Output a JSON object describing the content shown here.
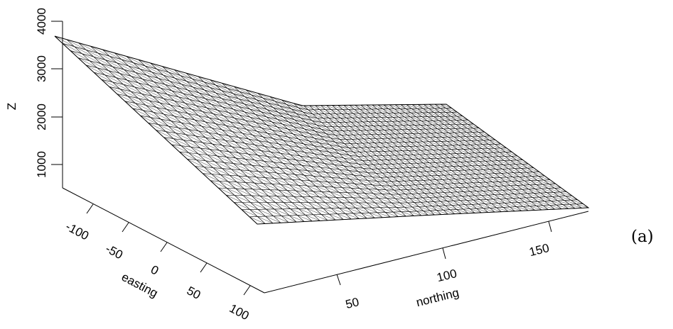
{
  "chart_data": {
    "type": "surface",
    "title": "",
    "panel_label": "(a)",
    "axes": {
      "z": {
        "label": "Z",
        "ticks": [
          1000,
          2000,
          3000,
          4000
        ],
        "range": [
          500,
          4000
        ]
      },
      "easting": {
        "label": "easting",
        "ticks": [
          -100,
          -50,
          0,
          50,
          100
        ],
        "range": [
          -130,
          100
        ]
      },
      "northing": {
        "label": "northing",
        "ticks": [
          50,
          100,
          150
        ],
        "range": [
          10,
          190
        ]
      }
    },
    "surface": {
      "description_points": [
        {
          "easting": -130,
          "northing": 10,
          "z": 3650
        },
        {
          "easting": -130,
          "northing": 90,
          "z": 3650
        },
        {
          "easting": -130,
          "northing": 190,
          "z": 2250
        },
        {
          "easting": 100,
          "northing": 10,
          "z": 2000
        },
        {
          "easting": 100,
          "northing": 190,
          "z": 2000
        }
      ],
      "grid_rows": 46,
      "grid_cols": 26
    }
  }
}
